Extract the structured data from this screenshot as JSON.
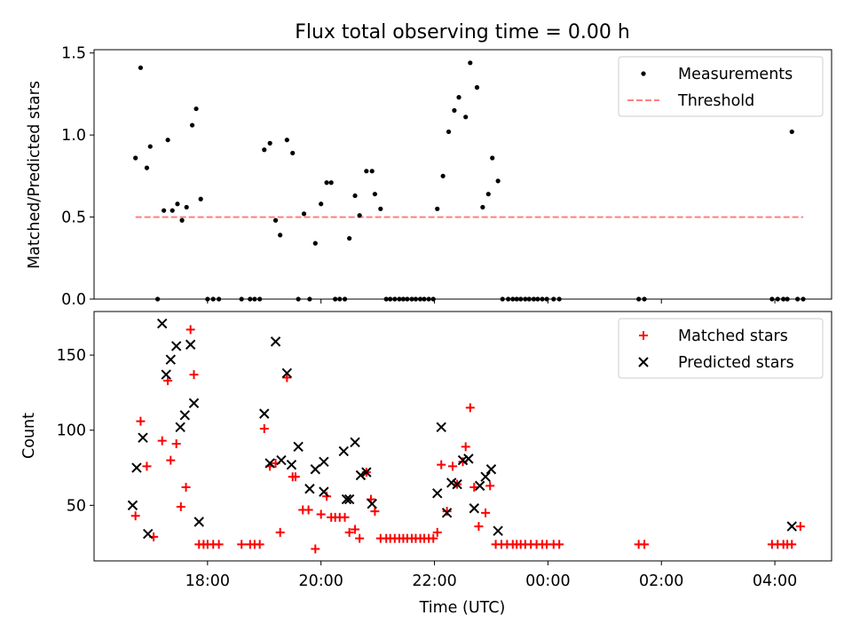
{
  "figure": {
    "title": "Flux total observing time = 0.00 h"
  },
  "chart_data": [
    {
      "type": "scatter",
      "ylabel": "Matched/Predicted stars",
      "xlabel": "",
      "ylim": [
        0,
        1.52
      ],
      "yticks": [
        0.0,
        0.5,
        1.0,
        1.5
      ],
      "ytick_labels": [
        "0.0",
        "0.5",
        "1.0",
        "1.5"
      ],
      "legend": {
        "position": "top-right",
        "entries": [
          "Measurements",
          "Threshold"
        ]
      },
      "threshold": {
        "value": 0.5,
        "x_start": 16.73,
        "x_end": 28.5,
        "color": "#ff7f7f",
        "style": "dashed"
      },
      "series": [
        {
          "name": "Measurements",
          "color": "#000000",
          "marker": "dot",
          "points": [
            [
              16.73,
              0.86
            ],
            [
              16.82,
              1.41
            ],
            [
              16.93,
              0.8
            ],
            [
              16.99,
              0.93
            ],
            [
              17.12,
              0.0
            ],
            [
              17.23,
              0.54
            ],
            [
              17.3,
              0.97
            ],
            [
              17.38,
              0.54
            ],
            [
              17.47,
              0.58
            ],
            [
              17.55,
              0.48
            ],
            [
              17.63,
              0.56
            ],
            [
              17.73,
              1.06
            ],
            [
              17.8,
              1.16
            ],
            [
              17.88,
              0.61
            ],
            [
              18.0,
              0.0
            ],
            [
              18.1,
              0.0
            ],
            [
              18.2,
              0.0
            ],
            [
              18.6,
              0.0
            ],
            [
              18.75,
              0.0
            ],
            [
              18.83,
              0.0
            ],
            [
              18.92,
              0.0
            ],
            [
              19.0,
              0.91
            ],
            [
              19.1,
              0.95
            ],
            [
              19.2,
              0.48
            ],
            [
              19.28,
              0.39
            ],
            [
              19.4,
              0.97
            ],
            [
              19.5,
              0.89
            ],
            [
              19.6,
              0.0
            ],
            [
              19.7,
              0.52
            ],
            [
              19.8,
              0.0
            ],
            [
              19.9,
              0.34
            ],
            [
              20.0,
              0.58
            ],
            [
              20.1,
              0.71
            ],
            [
              20.18,
              0.71
            ],
            [
              20.25,
              0.0
            ],
            [
              20.33,
              0.0
            ],
            [
              20.42,
              0.0
            ],
            [
              20.5,
              0.37
            ],
            [
              20.6,
              0.63
            ],
            [
              20.68,
              0.51
            ],
            [
              20.8,
              0.78
            ],
            [
              20.9,
              0.78
            ],
            [
              20.95,
              0.64
            ],
            [
              21.05,
              0.55
            ],
            [
              21.15,
              0.0
            ],
            [
              21.22,
              0.0
            ],
            [
              21.3,
              0.0
            ],
            [
              21.38,
              0.0
            ],
            [
              21.45,
              0.0
            ],
            [
              21.52,
              0.0
            ],
            [
              21.6,
              0.0
            ],
            [
              21.67,
              0.0
            ],
            [
              21.75,
              0.0
            ],
            [
              21.82,
              0.0
            ],
            [
              21.9,
              0.0
            ],
            [
              21.98,
              0.0
            ],
            [
              22.05,
              0.55
            ],
            [
              22.15,
              0.75
            ],
            [
              22.25,
              1.02
            ],
            [
              22.35,
              1.15
            ],
            [
              22.43,
              1.23
            ],
            [
              22.55,
              1.11
            ],
            [
              22.63,
              1.44
            ],
            [
              22.75,
              1.29
            ],
            [
              22.85,
              0.56
            ],
            [
              22.95,
              0.64
            ],
            [
              23.02,
              0.86
            ],
            [
              23.12,
              0.72
            ],
            [
              23.2,
              0.0
            ],
            [
              23.3,
              0.0
            ],
            [
              23.38,
              0.0
            ],
            [
              23.45,
              0.0
            ],
            [
              23.52,
              0.0
            ],
            [
              23.6,
              0.0
            ],
            [
              23.67,
              0.0
            ],
            [
              23.75,
              0.0
            ],
            [
              23.82,
              0.0
            ],
            [
              23.9,
              0.0
            ],
            [
              23.98,
              0.0
            ],
            [
              24.1,
              0.0
            ],
            [
              24.2,
              0.0
            ],
            [
              25.6,
              0.0
            ],
            [
              25.7,
              0.0
            ],
            [
              27.95,
              0.0
            ],
            [
              28.05,
              0.0
            ],
            [
              28.15,
              0.0
            ],
            [
              28.22,
              0.0
            ],
            [
              28.3,
              1.02
            ],
            [
              28.4,
              0.0
            ],
            [
              28.5,
              0.0
            ]
          ]
        }
      ]
    },
    {
      "type": "scatter",
      "ylabel": "Count",
      "xlabel": "Time (UTC)",
      "xlim": [
        16.0,
        29.0
      ],
      "ylim": [
        13,
        179
      ],
      "yticks": [
        50,
        100,
        150
      ],
      "ytick_labels": [
        "50",
        "100",
        "150"
      ],
      "xticks": [
        18,
        20,
        22,
        24,
        26,
        28
      ],
      "xtick_labels": [
        "18:00",
        "20:00",
        "22:00",
        "00:00",
        "02:00",
        "04:00"
      ],
      "legend": {
        "position": "top-right",
        "entries": [
          "Matched stars",
          "Predicted stars"
        ]
      },
      "series": [
        {
          "name": "Matched stars",
          "color": "#ff0000",
          "marker": "plus",
          "points": [
            [
              16.73,
              43
            ],
            [
              16.82,
              106
            ],
            [
              16.93,
              76
            ],
            [
              17.05,
              29
            ],
            [
              17.2,
              93
            ],
            [
              17.3,
              133
            ],
            [
              17.35,
              80
            ],
            [
              17.45,
              91
            ],
            [
              17.53,
              49
            ],
            [
              17.62,
              62
            ],
            [
              17.7,
              167
            ],
            [
              17.76,
              137
            ],
            [
              17.85,
              24
            ],
            [
              17.93,
              24
            ],
            [
              18.0,
              24
            ],
            [
              18.1,
              24
            ],
            [
              18.2,
              24
            ],
            [
              18.6,
              24
            ],
            [
              18.75,
              24
            ],
            [
              18.83,
              24
            ],
            [
              18.92,
              24
            ],
            [
              19.0,
              101
            ],
            [
              19.1,
              76
            ],
            [
              19.2,
              78
            ],
            [
              19.28,
              32
            ],
            [
              19.4,
              135
            ],
            [
              19.5,
              69
            ],
            [
              19.55,
              69
            ],
            [
              19.68,
              47
            ],
            [
              19.78,
              47
            ],
            [
              19.9,
              21
            ],
            [
              20.0,
              44
            ],
            [
              20.1,
              56
            ],
            [
              20.18,
              42
            ],
            [
              20.25,
              42
            ],
            [
              20.33,
              42
            ],
            [
              20.42,
              42
            ],
            [
              20.5,
              32
            ],
            [
              20.6,
              34
            ],
            [
              20.68,
              28
            ],
            [
              20.8,
              72
            ],
            [
              20.88,
              54
            ],
            [
              20.95,
              46
            ],
            [
              21.05,
              28
            ],
            [
              21.15,
              28
            ],
            [
              21.22,
              28
            ],
            [
              21.3,
              28
            ],
            [
              21.38,
              28
            ],
            [
              21.45,
              28
            ],
            [
              21.52,
              28
            ],
            [
              21.6,
              28
            ],
            [
              21.67,
              28
            ],
            [
              21.75,
              28
            ],
            [
              21.82,
              28
            ],
            [
              21.9,
              28
            ],
            [
              21.98,
              28
            ],
            [
              22.05,
              32
            ],
            [
              22.12,
              77
            ],
            [
              22.22,
              46
            ],
            [
              22.32,
              76
            ],
            [
              22.4,
              64
            ],
            [
              22.5,
              79
            ],
            [
              22.55,
              89
            ],
            [
              22.63,
              115
            ],
            [
              22.7,
              62
            ],
            [
              22.78,
              36
            ],
            [
              22.9,
              45
            ],
            [
              22.98,
              63
            ],
            [
              23.08,
              24
            ],
            [
              23.18,
              24
            ],
            [
              23.28,
              24
            ],
            [
              23.38,
              24
            ],
            [
              23.45,
              24
            ],
            [
              23.52,
              24
            ],
            [
              23.6,
              24
            ],
            [
              23.7,
              24
            ],
            [
              23.8,
              24
            ],
            [
              23.9,
              24
            ],
            [
              23.98,
              24
            ],
            [
              24.1,
              24
            ],
            [
              24.2,
              24
            ],
            [
              25.6,
              24
            ],
            [
              25.7,
              24
            ],
            [
              27.95,
              24
            ],
            [
              28.05,
              24
            ],
            [
              28.15,
              24
            ],
            [
              28.22,
              24
            ],
            [
              28.3,
              24
            ],
            [
              28.45,
              36
            ]
          ]
        },
        {
          "name": "Predicted stars",
          "color": "#000000",
          "marker": "x",
          "points": [
            [
              16.68,
              50
            ],
            [
              16.75,
              75
            ],
            [
              16.86,
              95
            ],
            [
              16.95,
              31
            ],
            [
              17.2,
              171
            ],
            [
              17.27,
              137
            ],
            [
              17.35,
              147
            ],
            [
              17.45,
              156
            ],
            [
              17.52,
              102
            ],
            [
              17.6,
              110
            ],
            [
              17.7,
              157
            ],
            [
              17.76,
              118
            ],
            [
              17.85,
              39
            ],
            [
              19.0,
              111
            ],
            [
              19.1,
              78
            ],
            [
              19.2,
              159
            ],
            [
              19.3,
              80
            ],
            [
              19.4,
              138
            ],
            [
              19.48,
              77
            ],
            [
              19.6,
              89
            ],
            [
              19.8,
              61
            ],
            [
              19.9,
              74
            ],
            [
              20.05,
              79
            ],
            [
              20.05,
              59
            ],
            [
              20.4,
              86
            ],
            [
              20.45,
              54
            ],
            [
              20.5,
              54
            ],
            [
              20.6,
              92
            ],
            [
              20.7,
              70
            ],
            [
              20.8,
              72
            ],
            [
              20.9,
              51
            ],
            [
              22.05,
              58
            ],
            [
              22.12,
              102
            ],
            [
              22.22,
              45
            ],
            [
              22.3,
              65
            ],
            [
              22.4,
              64
            ],
            [
              22.5,
              80
            ],
            [
              22.6,
              81
            ],
            [
              22.7,
              48
            ],
            [
              22.8,
              63
            ],
            [
              22.9,
              69
            ],
            [
              23.0,
              74
            ],
            [
              23.12,
              33
            ],
            [
              28.3,
              36
            ]
          ]
        }
      ]
    }
  ]
}
